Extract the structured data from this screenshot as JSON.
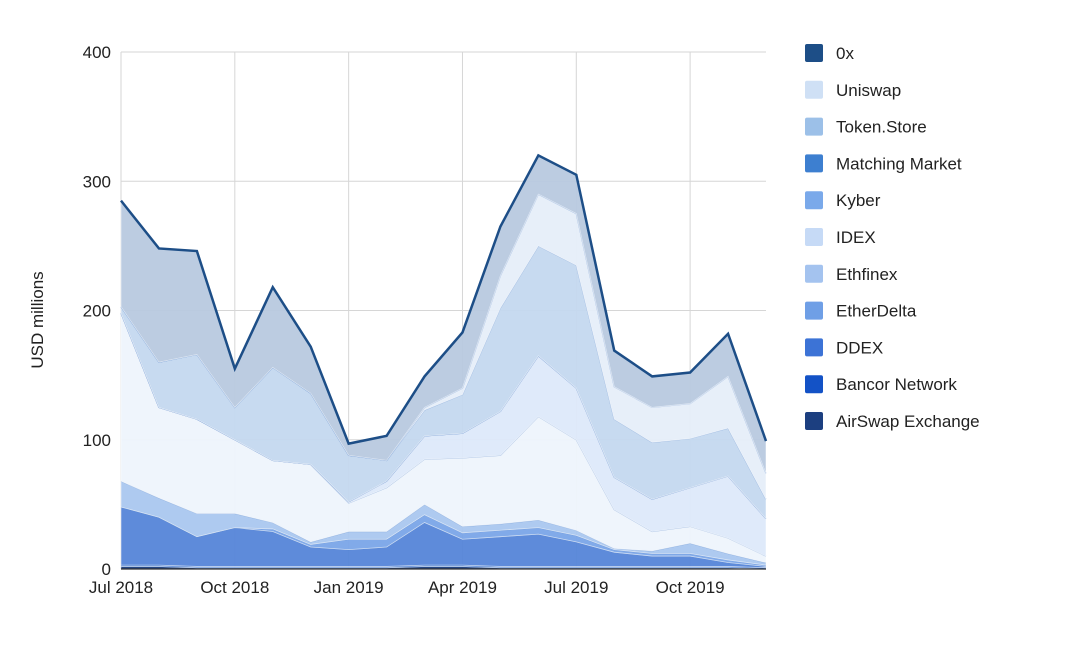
{
  "chart_data": {
    "type": "area",
    "stacked": true,
    "title": "",
    "xlabel": "",
    "ylabel": "USD millions",
    "ylim": [
      0,
      400
    ],
    "yticks": [
      0,
      100,
      200,
      300,
      400
    ],
    "x_tick_labels": [
      {
        "index": 0,
        "label": "Jul 2018"
      },
      {
        "index": 3,
        "label": "Oct 2018"
      },
      {
        "index": 6,
        "label": "Jan 2019"
      },
      {
        "index": 9,
        "label": "Apr 2019"
      },
      {
        "index": 12,
        "label": "Jul 2019"
      },
      {
        "index": 15,
        "label": "Oct 2019"
      }
    ],
    "x": [
      "Jul 2018",
      "Aug 2018",
      "Sep 2018",
      "Oct 2018",
      "Nov 2018",
      "Dec 2018",
      "Jan 2019",
      "Feb 2019",
      "Mar 2019",
      "Apr 2019",
      "May 2019",
      "Jun 2019",
      "Jul 2019",
      "Aug 2019",
      "Sep 2019",
      "Oct 2019",
      "Nov 2019",
      "Dec 2019"
    ],
    "series": [
      {
        "name": "AirSwap Exchange",
        "color": "#1a3d7c",
        "values": [
          2,
          2,
          1,
          1,
          1,
          1,
          1,
          1,
          2,
          2,
          1,
          1,
          1,
          1,
          1,
          1,
          1,
          0
        ]
      },
      {
        "name": "Bancor Network",
        "color": "#1a5cc8",
        "values": [
          1,
          1,
          1,
          1,
          1,
          1,
          1,
          1,
          1,
          1,
          1,
          1,
          1,
          1,
          1,
          1,
          1,
          1
        ]
      },
      {
        "name": "DDEX",
        "color": "#5585d8",
        "values": [
          45,
          37,
          23,
          30,
          27,
          15,
          13,
          15,
          33,
          20,
          23,
          25,
          19,
          11,
          8,
          8,
          3,
          1
        ]
      },
      {
        "name": "EtherDelta",
        "color": "#7aa5e8",
        "values": [
          0,
          0,
          0,
          0,
          2,
          2,
          8,
          6,
          6,
          5,
          5,
          5,
          5,
          2,
          2,
          2,
          2,
          1
        ]
      },
      {
        "name": "Ethfinex",
        "color": "#aac7ef",
        "values": [
          20,
          15,
          18,
          11,
          5,
          2,
          6,
          6,
          8,
          5,
          5,
          6,
          4,
          1,
          2,
          8,
          5,
          2
        ]
      },
      {
        "name": "IDEX",
        "color": "#eef4fc",
        "values": [
          130,
          70,
          73,
          57,
          48,
          60,
          22,
          34,
          35,
          53,
          53,
          80,
          70,
          30,
          15,
          13,
          12,
          5
        ]
      },
      {
        "name": "Kyber",
        "color": "#dde9fa",
        "values": [
          0,
          0,
          0,
          0,
          0,
          0,
          1,
          5,
          18,
          19,
          34,
          47,
          40,
          25,
          25,
          30,
          48,
          29
        ]
      },
      {
        "name": "Matching Market",
        "color": "#a7c2e6",
        "values": [
          0,
          0,
          0,
          0,
          0,
          0,
          0,
          0,
          0,
          0,
          0,
          0,
          0,
          0,
          0,
          0,
          0,
          0
        ]
      },
      {
        "name": "Token.Store",
        "color": "#c4d8ef",
        "values": [
          5,
          35,
          50,
          25,
          72,
          55,
          36,
          16,
          20,
          30,
          80,
          85,
          95,
          45,
          44,
          38,
          37,
          15
        ]
      },
      {
        "name": "Uniswap",
        "color": "#e6eef9",
        "values": [
          0,
          0,
          0,
          0,
          0,
          0,
          0,
          0,
          2,
          5,
          25,
          40,
          40,
          25,
          27,
          27,
          40,
          20
        ]
      },
      {
        "name": "0x",
        "color": "#b8c9df",
        "values": [
          82,
          88,
          80,
          30,
          62,
          36,
          9,
          19,
          24,
          43,
          38,
          30,
          30,
          28,
          24,
          24,
          33,
          25
        ]
      }
    ],
    "legend": [
      "0x",
      "Uniswap",
      "Token.Store",
      "Matching Market",
      "Kyber",
      "IDEX",
      "Ethfinex",
      "EtherDelta",
      "DDEX",
      "Bancor Network",
      "AirSwap Exchange"
    ],
    "legend_colors": {
      "0x": "#1d4e87",
      "Uniswap": "#cfe0f5",
      "Token.Store": "#9cc0e8",
      "Matching Market": "#3d7fd0",
      "Kyber": "#7aa9ea",
      "IDEX": "#c6daf6",
      "Ethfinex": "#a4c3ef",
      "EtherDelta": "#6f9fe6",
      "DDEX": "#3c73d6",
      "Bancor Network": "#1352c6",
      "AirSwap Exchange": "#1c3f80"
    },
    "legend_position": "right",
    "grid": true,
    "top_line_color": "#1d4e87"
  }
}
